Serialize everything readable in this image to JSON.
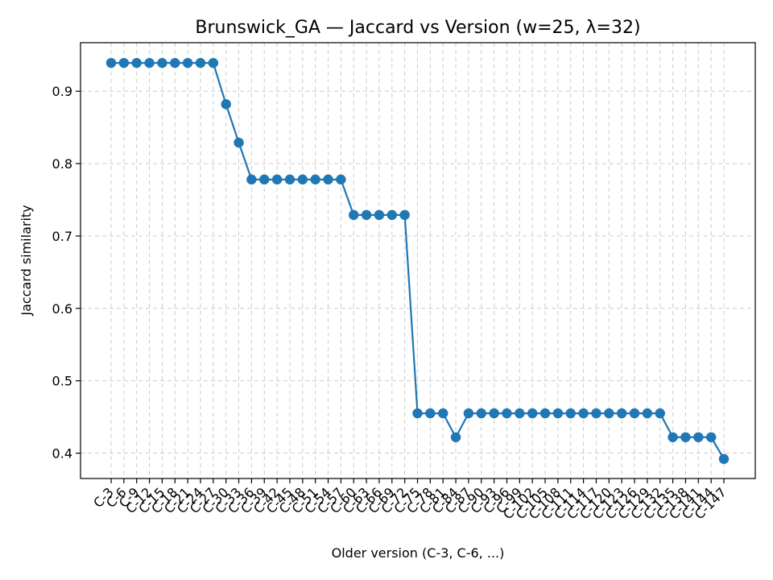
{
  "chart_data": {
    "type": "line",
    "title": "Brunswick_GA — Jaccard vs Version (w=25, λ=32)",
    "xlabel": "Older version (C-3, C-6, ...)",
    "ylabel": "Jaccard similarity",
    "ylim": [
      0.365,
      0.967
    ],
    "yticks": [
      0.4,
      0.5,
      0.6,
      0.7,
      0.8,
      0.9
    ],
    "grid": true,
    "color": "#1f77b4",
    "categories": [
      "C-3",
      "C-6",
      "C-9",
      "C-12",
      "C-15",
      "C-18",
      "C-21",
      "C-24",
      "C-27",
      "C-30",
      "C-33",
      "C-36",
      "C-39",
      "C-42",
      "C-45",
      "C-48",
      "C-51",
      "C-54",
      "C-57",
      "C-60",
      "C-63",
      "C-66",
      "C-69",
      "C-72",
      "C-75",
      "C-78",
      "C-81",
      "C-84",
      "C-87",
      "C-90",
      "C-93",
      "C-96",
      "C-99",
      "C-102",
      "C-105",
      "C-108",
      "C-111",
      "C-114",
      "C-117",
      "C-120",
      "C-123",
      "C-126",
      "C-129",
      "C-132",
      "C-135",
      "C-138",
      "C-141",
      "C-144",
      "C-147"
    ],
    "values": [
      0.939,
      0.939,
      0.939,
      0.939,
      0.939,
      0.939,
      0.939,
      0.939,
      0.939,
      0.882,
      0.829,
      0.778,
      0.778,
      0.778,
      0.778,
      0.778,
      0.778,
      0.778,
      0.778,
      0.729,
      0.729,
      0.729,
      0.729,
      0.729,
      0.455,
      0.455,
      0.455,
      0.422,
      0.455,
      0.455,
      0.455,
      0.455,
      0.455,
      0.455,
      0.455,
      0.455,
      0.455,
      0.455,
      0.455,
      0.455,
      0.455,
      0.455,
      0.455,
      0.455,
      0.422,
      0.422,
      0.422,
      0.422,
      0.392
    ]
  }
}
